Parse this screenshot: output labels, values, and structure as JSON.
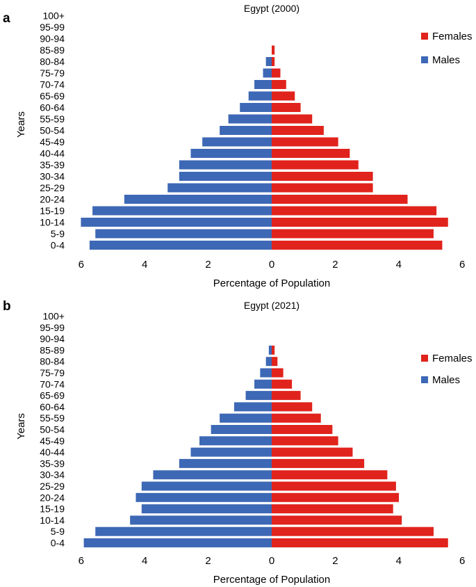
{
  "panels": [
    {
      "letter": "a"
    },
    {
      "letter": "b"
    }
  ],
  "colors": {
    "females": "#e0231c",
    "males": "#3d68b5",
    "text": "#000000"
  },
  "chart_data": [
    {
      "type": "bar",
      "orientation": "horizontal-population-pyramid",
      "title": "Egypt (2000)",
      "xlabel": "Percentage of Population",
      "ylabel": "Years",
      "xlim": [
        -7,
        7
      ],
      "xticks": [
        -6,
        -4,
        -2,
        0,
        2,
        4,
        6
      ],
      "xtick_labels": [
        "6",
        "4",
        "2",
        "0",
        "2",
        "4",
        "6"
      ],
      "legend": {
        "position": "top-right",
        "entries": [
          "Females",
          "Males"
        ]
      },
      "categories": [
        "0-4",
        "5-9",
        "10-14",
        "15-19",
        "20-24",
        "25-29",
        "30-34",
        "35-39",
        "40-44",
        "45-49",
        "50-54",
        "55-59",
        "60-64",
        "65-69",
        "70-74",
        "75-79",
        "80-84",
        "85-89",
        "90-94",
        "95-99",
        "100+"
      ],
      "series": [
        {
          "name": "Males",
          "values": [
            6.3,
            6.1,
            6.6,
            6.2,
            5.1,
            3.6,
            3.2,
            3.2,
            2.8,
            2.4,
            1.8,
            1.5,
            1.1,
            0.8,
            0.6,
            0.3,
            0.2,
            0.0,
            0.0,
            0.0,
            0.0
          ]
        },
        {
          "name": "Females",
          "values": [
            5.9,
            5.6,
            6.1,
            5.7,
            4.7,
            3.5,
            3.5,
            3.0,
            2.7,
            2.3,
            1.8,
            1.4,
            1.0,
            0.8,
            0.5,
            0.3,
            0.1,
            0.1,
            0.0,
            0.0,
            0.0
          ]
        }
      ]
    },
    {
      "type": "bar",
      "orientation": "horizontal-population-pyramid",
      "title": "Egypt (2021)",
      "xlabel": "Percentage of Population",
      "ylabel": "Years",
      "xlim": [
        -7,
        7
      ],
      "xticks": [
        -6,
        -4,
        -2,
        0,
        2,
        4,
        6
      ],
      "xtick_labels": [
        "6",
        "4",
        "2",
        "0",
        "2",
        "4",
        "6"
      ],
      "legend": {
        "position": "top-right",
        "entries": [
          "Females",
          "Males"
        ]
      },
      "categories": [
        "0-4",
        "5-9",
        "10-14",
        "15-19",
        "20-24",
        "25-29",
        "30-34",
        "35-39",
        "40-44",
        "45-49",
        "50-54",
        "55-59",
        "60-64",
        "65-69",
        "70-74",
        "75-79",
        "80-84",
        "85-89",
        "90-94",
        "95-99",
        "100+"
      ],
      "series": [
        {
          "name": "Males",
          "values": [
            6.5,
            6.1,
            4.9,
            4.5,
            4.7,
            4.5,
            4.1,
            3.2,
            2.8,
            2.5,
            2.1,
            1.8,
            1.3,
            0.9,
            0.6,
            0.4,
            0.2,
            0.1,
            0.0,
            0.0,
            0.0
          ]
        },
        {
          "name": "Females",
          "values": [
            6.1,
            5.6,
            4.5,
            4.2,
            4.4,
            4.3,
            4.0,
            3.2,
            2.8,
            2.3,
            2.1,
            1.7,
            1.4,
            1.0,
            0.7,
            0.4,
            0.2,
            0.1,
            0.0,
            0.0,
            0.0
          ]
        }
      ]
    }
  ]
}
